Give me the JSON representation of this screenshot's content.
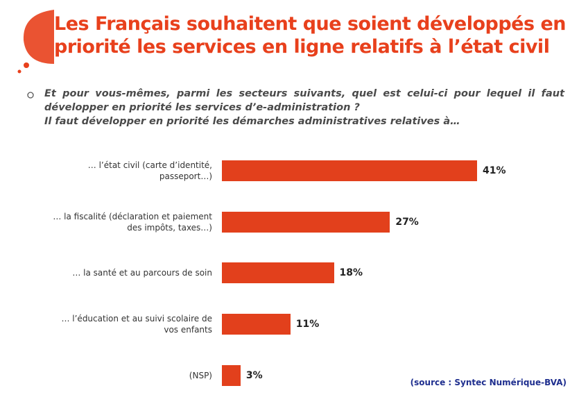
{
  "chart_data": {
    "type": "bar",
    "title": "Les Français  souhaitent que soient développés en priorité les services en ligne relatifs à l’état civil",
    "subtitle": [
      "Et pour vous-mêmes, parmi les secteurs suivants, quel est celui-ci pour lequel il faut développer en priorité les services d’e-administration ?",
      "Il faut développer en priorité les démarches administratives relatives à…"
    ],
    "categories": [
      "… l’état civil (carte d’identité, passeport…)",
      "… la fiscalité (déclaration et paiement des impôts, taxes…)",
      "… la santé et au parcours de soin",
      "… l’éducation et au suivi scolaire de vos enfants",
      "(NSP)"
    ],
    "values": [
      41,
      27,
      18,
      11,
      3
    ],
    "value_labels": [
      "41%",
      "27%",
      "18%",
      "11%",
      "3%"
    ],
    "color": "#e2401c",
    "source": "(source : Syntec Numérique-BVA)"
  }
}
